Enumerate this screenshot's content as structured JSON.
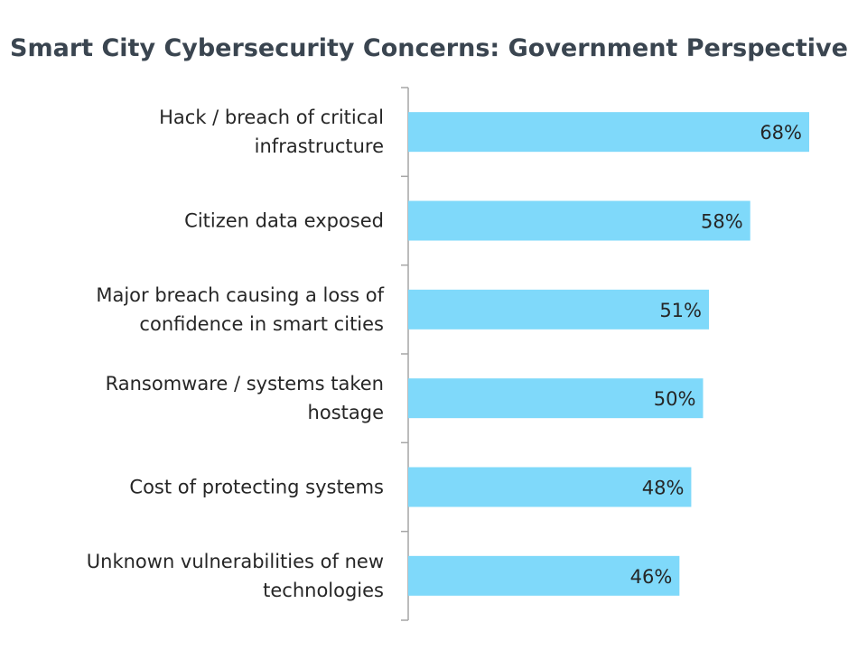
{
  "chart_data": {
    "type": "bar",
    "orientation": "horizontal",
    "title": "Smart City Cybersecurity Concerns: Government Perspective",
    "categories": [
      [
        "Hack / breach of critical",
        "infrastructure"
      ],
      [
        "Citizen data exposed"
      ],
      [
        "Major breach causing a loss of",
        "confidence in smart cities"
      ],
      [
        "Ransomware / systems taken",
        "hostage"
      ],
      [
        "Cost of protecting systems"
      ],
      [
        "Unknown vulnerabilities of new",
        "technologies"
      ]
    ],
    "values": [
      68,
      58,
      51,
      50,
      48,
      46
    ],
    "value_labels": [
      "68%",
      "58%",
      "51%",
      "50%",
      "48%",
      "46%"
    ],
    "xlim": [
      0,
      100
    ],
    "grid": false,
    "bar_color": "#7fd9fa",
    "axis_color": "#a6a6a6",
    "text_color": "#262626"
  }
}
